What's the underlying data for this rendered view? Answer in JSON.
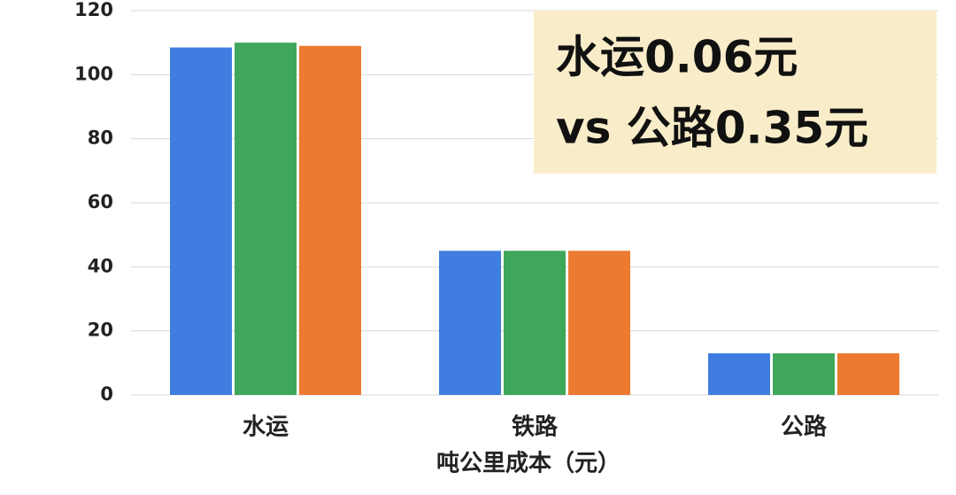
{
  "chart_data": {
    "type": "bar",
    "x_label": "吨公里成本（元）",
    "categories": [
      "水运",
      "铁路",
      "公路"
    ],
    "series": [
      {
        "color": "#3f7de0",
        "values": [
          108.5,
          45,
          13
        ]
      },
      {
        "color": "#3fa75a",
        "values": [
          110,
          45,
          13
        ]
      },
      {
        "color": "#ec7a30",
        "values": [
          109,
          45,
          13
        ]
      }
    ],
    "ylim": [
      0,
      120
    ],
    "yticks": [
      0,
      20,
      40,
      60,
      80,
      100,
      120
    ],
    "grid": true,
    "annotation": [
      "水运0.06元",
      "vs 公路0.35元"
    ]
  }
}
